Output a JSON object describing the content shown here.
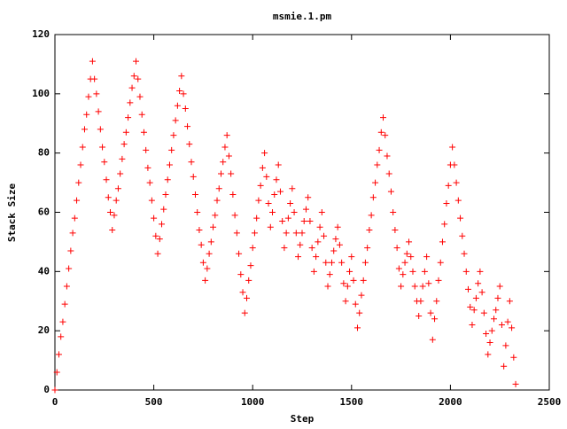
{
  "chart_data": {
    "type": "scatter",
    "title": "msmie.1.pm",
    "x_label": "Step",
    "y_label": "Stack Size",
    "color": "#ff0000",
    "xlim": [
      0,
      2500
    ],
    "ylim": [
      0,
      120
    ],
    "xticks": [
      0,
      500,
      1000,
      1500,
      2000,
      2500
    ],
    "yticks": [
      0,
      20,
      40,
      60,
      80,
      100,
      120
    ],
    "x": [
      0,
      10,
      20,
      30,
      40,
      50,
      60,
      70,
      80,
      90,
      100,
      110,
      120,
      130,
      140,
      150,
      160,
      170,
      180,
      190,
      200,
      210,
      220,
      230,
      240,
      250,
      260,
      270,
      280,
      290,
      300,
      310,
      320,
      330,
      340,
      350,
      360,
      370,
      380,
      390,
      400,
      410,
      420,
      430,
      440,
      450,
      460,
      470,
      480,
      490,
      500,
      510,
      520,
      530,
      540,
      550,
      560,
      570,
      580,
      590,
      600,
      610,
      620,
      630,
      640,
      650,
      660,
      670,
      680,
      690,
      700,
      710,
      720,
      730,
      740,
      750,
      760,
      770,
      780,
      790,
      800,
      810,
      820,
      830,
      840,
      850,
      860,
      870,
      880,
      890,
      900,
      910,
      920,
      930,
      940,
      950,
      960,
      970,
      980,
      990,
      1000,
      1010,
      1020,
      1030,
      1040,
      1050,
      1060,
      1070,
      1080,
      1090,
      1100,
      1110,
      1120,
      1130,
      1140,
      1150,
      1160,
      1170,
      1180,
      1190,
      1200,
      1210,
      1220,
      1230,
      1240,
      1250,
      1260,
      1270,
      1280,
      1290,
      1300,
      1310,
      1320,
      1330,
      1340,
      1350,
      1360,
      1370,
      1380,
      1390,
      1400,
      1410,
      1420,
      1430,
      1440,
      1450,
      1460,
      1470,
      1480,
      1490,
      1500,
      1510,
      1520,
      1530,
      1540,
      1550,
      1560,
      1570,
      1580,
      1590,
      1600,
      1610,
      1620,
      1630,
      1640,
      1650,
      1660,
      1670,
      1680,
      1690,
      1700,
      1710,
      1720,
      1730,
      1740,
      1750,
      1760,
      1770,
      1780,
      1790,
      1800,
      1810,
      1820,
      1830,
      1840,
      1850,
      1860,
      1870,
      1880,
      1890,
      1900,
      1910,
      1920,
      1930,
      1940,
      1950,
      1960,
      1970,
      1980,
      1990,
      2000,
      2010,
      2020,
      2030,
      2040,
      2050,
      2060,
      2070,
      2080,
      2090,
      2100,
      2110,
      2120,
      2130,
      2140,
      2150,
      2160,
      2170,
      2180,
      2190,
      2200,
      2210,
      2220,
      2230,
      2240,
      2250,
      2260,
      2270,
      2280,
      2290,
      2300,
      2310,
      2320,
      2330
    ],
    "values": [
      0,
      6,
      12,
      18,
      23,
      29,
      35,
      41,
      47,
      53,
      58,
      64,
      70,
      76,
      82,
      88,
      93,
      99,
      105,
      111,
      105,
      100,
      94,
      88,
      82,
      77,
      71,
      65,
      60,
      54,
      59,
      64,
      68,
      73,
      78,
      83,
      87,
      92,
      97,
      102,
      106,
      111,
      105,
      99,
      93,
      87,
      81,
      75,
      70,
      64,
      58,
      52,
      46,
      51,
      56,
      61,
      66,
      71,
      76,
      81,
      86,
      91,
      96,
      101,
      106,
      100,
      95,
      89,
      83,
      77,
      72,
      66,
      60,
      54,
      49,
      43,
      37,
      41,
      46,
      50,
      55,
      59,
      64,
      68,
      73,
      77,
      82,
      86,
      79,
      73,
      66,
      59,
      53,
      46,
      39,
      33,
      26,
      31,
      37,
      42,
      48,
      53,
      58,
      64,
      69,
      75,
      80,
      72,
      63,
      55,
      60,
      66,
      71,
      76,
      67,
      57,
      48,
      53,
      58,
      63,
      68,
      60,
      53,
      45,
      49,
      53,
      57,
      61,
      65,
      57,
      48,
      40,
      45,
      50,
      55,
      60,
      52,
      43,
      35,
      39,
      43,
      47,
      51,
      55,
      49,
      43,
      36,
      30,
      35,
      40,
      45,
      37,
      29,
      21,
      26,
      32,
      37,
      43,
      48,
      54,
      59,
      65,
      70,
      76,
      81,
      87,
      92,
      86,
      79,
      73,
      67,
      60,
      54,
      48,
      41,
      35,
      39,
      43,
      46,
      50,
      45,
      40,
      35,
      30,
      25,
      30,
      35,
      40,
      45,
      36,
      26,
      17,
      24,
      30,
      37,
      43,
      50,
      56,
      63,
      69,
      76,
      82,
      76,
      70,
      64,
      58,
      52,
      46,
      40,
      34,
      28,
      22,
      27,
      31,
      36,
      40,
      33,
      26,
      19,
      12,
      16,
      20,
      24,
      27,
      31,
      35,
      22,
      8,
      15,
      23,
      30,
      21,
      11,
      2
    ]
  }
}
